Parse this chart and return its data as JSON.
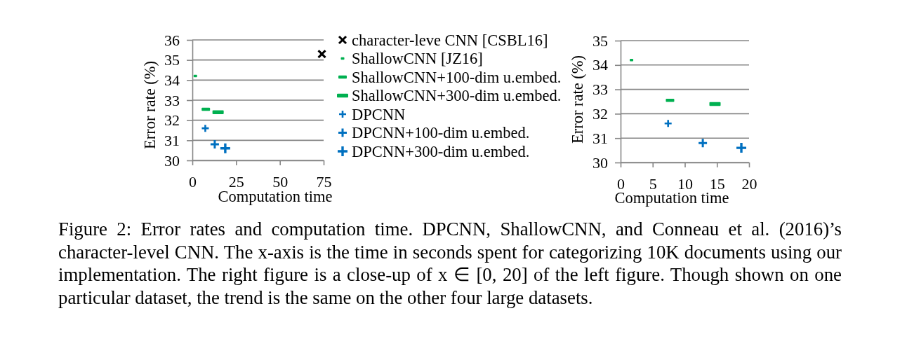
{
  "chart_data": [
    {
      "type": "scatter",
      "xlabel": "Computation time",
      "ylabel": "Error rate (%)",
      "xlim": [
        0,
        75
      ],
      "xticks": [
        0,
        25,
        50,
        75
      ],
      "ylim": [
        30,
        36
      ],
      "yticks": [
        30,
        31,
        32,
        33,
        34,
        35,
        36
      ],
      "grid": "y",
      "legend": "right",
      "annotations": [
        "Figure 2: Error rates and computation time. DPCNN, ShallowCNN, and Conneau et al. (2016)’s character-level CNN. The x-axis is the time in seconds spent for categorizing 10K documents using our implementation. The right figure is a close-up of x ∈ [0, 20] of the left figure. Though shown on one particular dataset, the trend is the same on the other four large datasets."
      ],
      "series": [
        {
          "name": "character-leve CNN [CSBL16]",
          "color": "#000000",
          "marker": "cross",
          "x": [
            74
          ],
          "values": [
            35.3
          ]
        },
        {
          "name": "ShallowCNN [JZ16]",
          "color": "#00b050",
          "marker": "square",
          "x": [
            1.7
          ],
          "values": [
            34.2
          ]
        },
        {
          "name": "ShallowCNN+100-dim u.embed.",
          "color": "#00b050",
          "marker": "square",
          "x": [
            7.7
          ],
          "values": [
            32.55
          ]
        },
        {
          "name": "ShallowCNN+300-dim u.embed.",
          "color": "#00b050",
          "marker": "square",
          "x": [
            14.7
          ],
          "values": [
            32.4
          ]
        },
        {
          "name": "DPCNN",
          "color": "#0070c0",
          "marker": "cross",
          "x": [
            7.4
          ],
          "values": [
            31.6
          ]
        },
        {
          "name": "DPCNN+100-dim u.embed.",
          "color": "#0070c0",
          "marker": "cross",
          "x": [
            12.8
          ],
          "values": [
            30.8
          ]
        },
        {
          "name": "DPCNN+300-dim u.embed.",
          "color": "#0070c0",
          "marker": "cross",
          "x": [
            18.8
          ],
          "values": [
            30.6
          ]
        }
      ]
    },
    {
      "type": "scatter",
      "xlabel": "Computation time",
      "ylabel": "Error rate (%)",
      "xlim": [
        0,
        20
      ],
      "xticks": [
        0,
        5,
        10,
        15,
        20
      ],
      "ylim": [
        30,
        35
      ],
      "yticks": [
        30,
        31,
        32,
        33,
        34,
        35
      ],
      "grid": "y",
      "series": [
        {
          "color": "#00b050",
          "marker": "square",
          "x": [
            1.7
          ],
          "values": [
            34.2
          ]
        },
        {
          "color": "#00b050",
          "marker": "square",
          "x": [
            7.7
          ],
          "values": [
            32.55
          ]
        },
        {
          "color": "#00b050",
          "marker": "square",
          "x": [
            14.7
          ],
          "values": [
            32.4
          ]
        },
        {
          "color": "#0070c0",
          "marker": "cross",
          "x": [
            7.4
          ],
          "values": [
            31.6
          ]
        },
        {
          "color": "#0070c0",
          "marker": "cross",
          "x": [
            12.8
          ],
          "values": [
            30.8
          ]
        },
        {
          "color": "#0070c0",
          "marker": "cross",
          "x": [
            18.8
          ],
          "values": [
            30.6
          ]
        }
      ]
    }
  ]
}
